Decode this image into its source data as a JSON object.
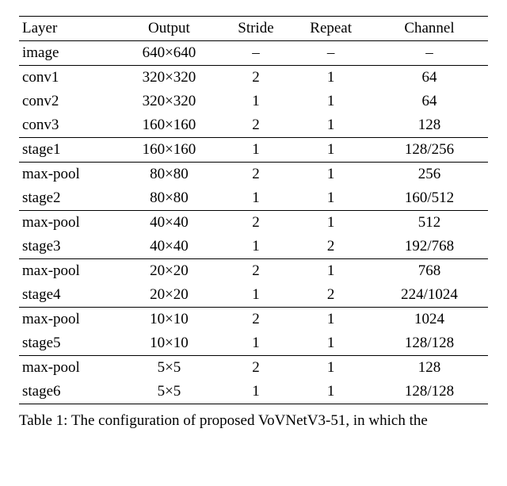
{
  "table": {
    "columns": [
      "Layer",
      "Output",
      "Stride",
      "Repeat",
      "Channel"
    ],
    "groups": [
      {
        "rows": [
          {
            "layer": "image",
            "output": "640×640",
            "stride": "–",
            "repeat": "–",
            "channel": "–"
          }
        ]
      },
      {
        "rows": [
          {
            "layer": "conv1",
            "output": "320×320",
            "stride": "2",
            "repeat": "1",
            "channel": "64"
          },
          {
            "layer": "conv2",
            "output": "320×320",
            "stride": "1",
            "repeat": "1",
            "channel": "64"
          },
          {
            "layer": "conv3",
            "output": "160×160",
            "stride": "2",
            "repeat": "1",
            "channel": "128"
          }
        ]
      },
      {
        "rows": [
          {
            "layer": "stage1",
            "output": "160×160",
            "stride": "1",
            "repeat": "1",
            "channel": "128/256"
          }
        ]
      },
      {
        "rows": [
          {
            "layer": "max-pool",
            "output": "80×80",
            "stride": "2",
            "repeat": "1",
            "channel": "256"
          },
          {
            "layer": "stage2",
            "output": "80×80",
            "stride": "1",
            "repeat": "1",
            "channel": "160/512"
          }
        ]
      },
      {
        "rows": [
          {
            "layer": "max-pool",
            "output": "40×40",
            "stride": "2",
            "repeat": "1",
            "channel": "512"
          },
          {
            "layer": "stage3",
            "output": "40×40",
            "stride": "1",
            "repeat": "2",
            "channel": "192/768"
          }
        ]
      },
      {
        "rows": [
          {
            "layer": "max-pool",
            "output": "20×20",
            "stride": "2",
            "repeat": "1",
            "channel": "768"
          },
          {
            "layer": "stage4",
            "output": "20×20",
            "stride": "1",
            "repeat": "2",
            "channel": "224/1024"
          }
        ]
      },
      {
        "rows": [
          {
            "layer": "max-pool",
            "output": "10×10",
            "stride": "2",
            "repeat": "1",
            "channel": "1024"
          },
          {
            "layer": "stage5",
            "output": "10×10",
            "stride": "1",
            "repeat": "1",
            "channel": "128/128"
          }
        ]
      },
      {
        "rows": [
          {
            "layer": "max-pool",
            "output": "5×5",
            "stride": "2",
            "repeat": "1",
            "channel": "128"
          },
          {
            "layer": "stage6",
            "output": "5×5",
            "stride": "1",
            "repeat": "1",
            "channel": "128/128"
          }
        ]
      }
    ]
  },
  "caption": "Table 1: The configuration of proposed VoVNetV3-51, in which the"
}
